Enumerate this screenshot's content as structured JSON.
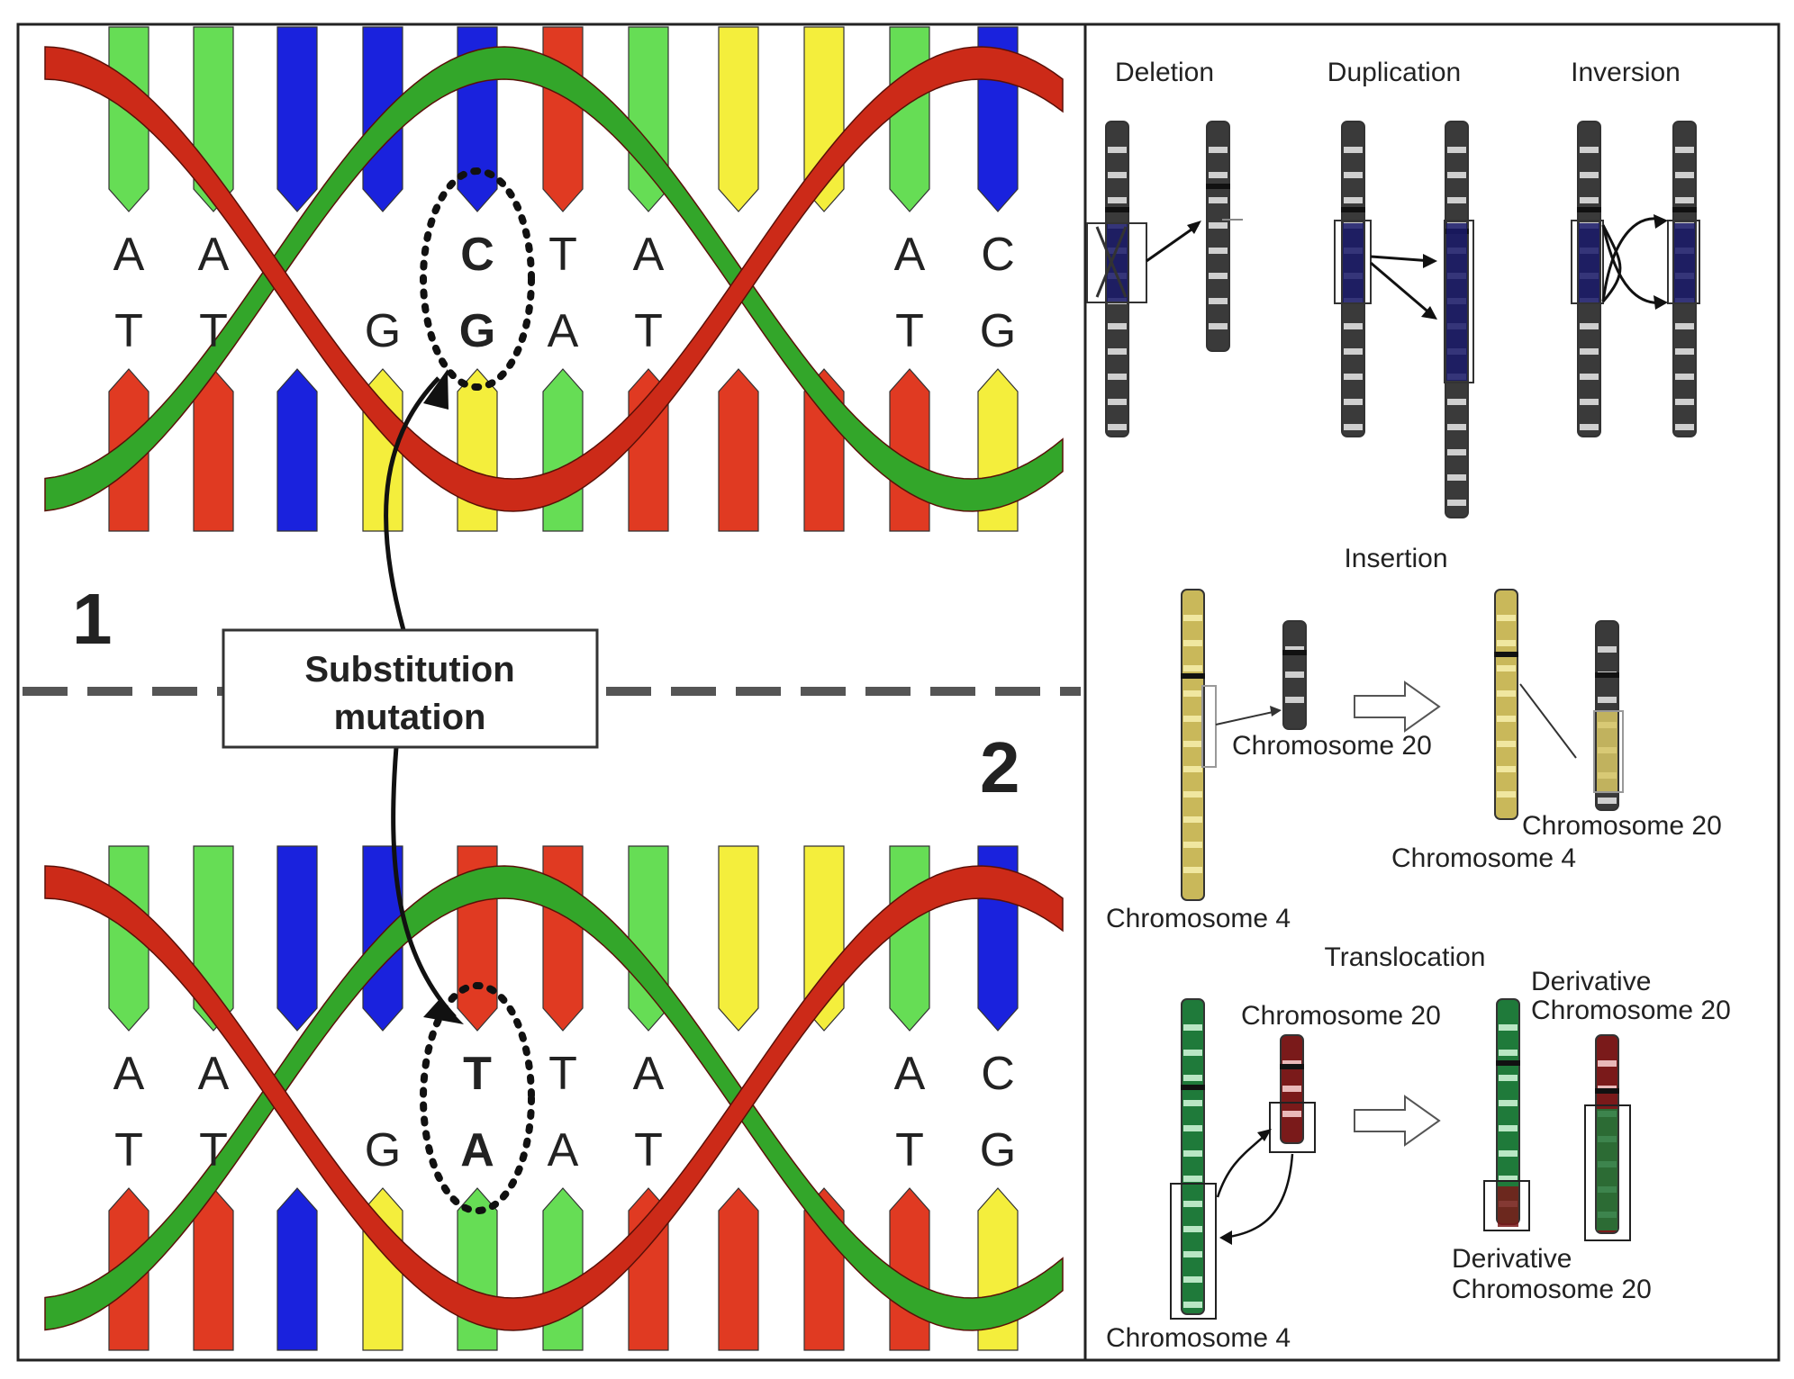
{
  "left_panel": {
    "panel1_number": "1",
    "panel2_number": "2",
    "callout": {
      "line1": "Substitution",
      "line2": "mutation"
    },
    "top_strand": [
      "A",
      "A",
      "",
      "",
      "C",
      "T",
      "A",
      "",
      "",
      "A",
      "C"
    ],
    "bottom_strand": [
      "T",
      "T",
      "",
      "G",
      "G",
      "A",
      "T",
      "",
      "",
      "T",
      "G"
    ],
    "top_strand_2": [
      "A",
      "A",
      "",
      "",
      "T",
      "T",
      "A",
      "",
      "",
      "A",
      "C"
    ],
    "bottom_strand_2": [
      "T",
      "T",
      "",
      "G",
      "A",
      "A",
      "T",
      "",
      "",
      "T",
      "G"
    ],
    "highlight_color": "#2222cc"
  },
  "right_panel": {
    "deletion": "Deletion",
    "duplication": "Duplication",
    "inversion": "Inversion",
    "insertion": "Insertion",
    "ins_chr20_a": "Chromosome 20",
    "ins_chr4_a": "Chromosome 4",
    "ins_chr20_b": "Chromosome 20",
    "ins_chr4_b": "Chromosome 4",
    "translocation": "Translocation",
    "tr_chr20": "Chromosome 20",
    "tr_deriv_top_1": "Derivative",
    "tr_deriv_top_2": "Chromosome 20",
    "tr_deriv_bot_1": "Derivative",
    "tr_deriv_bot_2": "Chromosome 20",
    "tr_chr4": "Chromosome 4"
  },
  "colors": {
    "red": "#e03a22",
    "green": "#66dd55",
    "blue": "#1a22dd",
    "yellow": "#f4ee3c",
    "ribbon_red": "#cc2a18",
    "ribbon_green": "#33a62a"
  }
}
